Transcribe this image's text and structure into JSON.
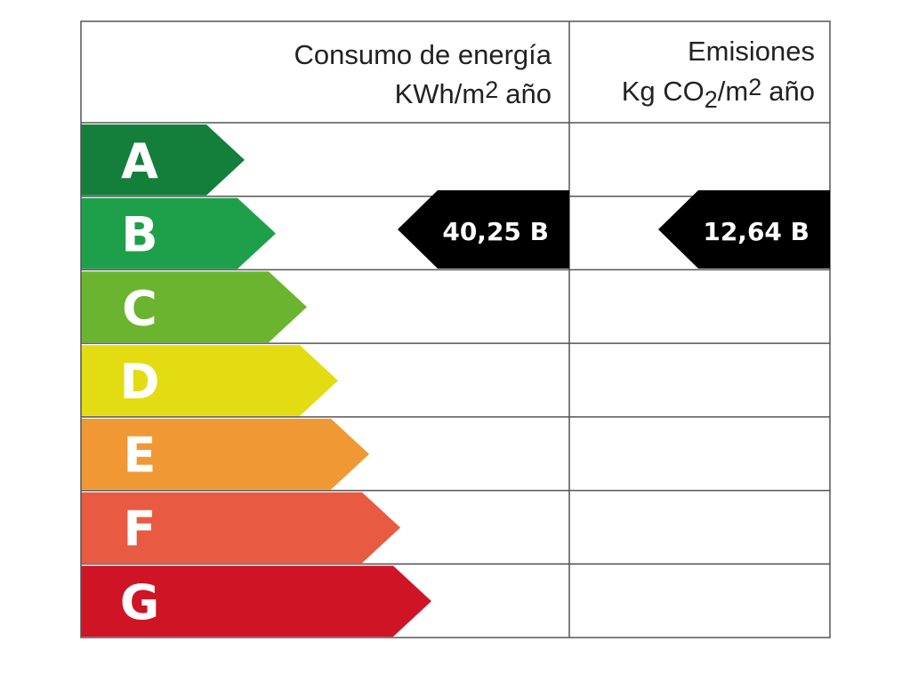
{
  "header": {
    "energy": {
      "title": "Consumo de energía",
      "unit": [
        "KWh/m",
        "2",
        "año"
      ]
    },
    "emissions": {
      "title": "Emisiones",
      "unit": [
        "Kg CO",
        "2",
        "/m",
        "2",
        "año"
      ]
    }
  },
  "ratings": [
    {
      "letter": "A",
      "color": "#137f3b"
    },
    {
      "letter": "B",
      "color": "#1ea04a"
    },
    {
      "letter": "C",
      "color": "#6ab42f"
    },
    {
      "letter": "D",
      "color": "#e3dc12"
    },
    {
      "letter": "E",
      "color": "#f09833"
    },
    {
      "letter": "F",
      "color": "#e85a41"
    },
    {
      "letter": "G",
      "color": "#cf1426"
    }
  ],
  "results": {
    "energy": "40,25 B",
    "emissions": "12,64 B"
  }
}
